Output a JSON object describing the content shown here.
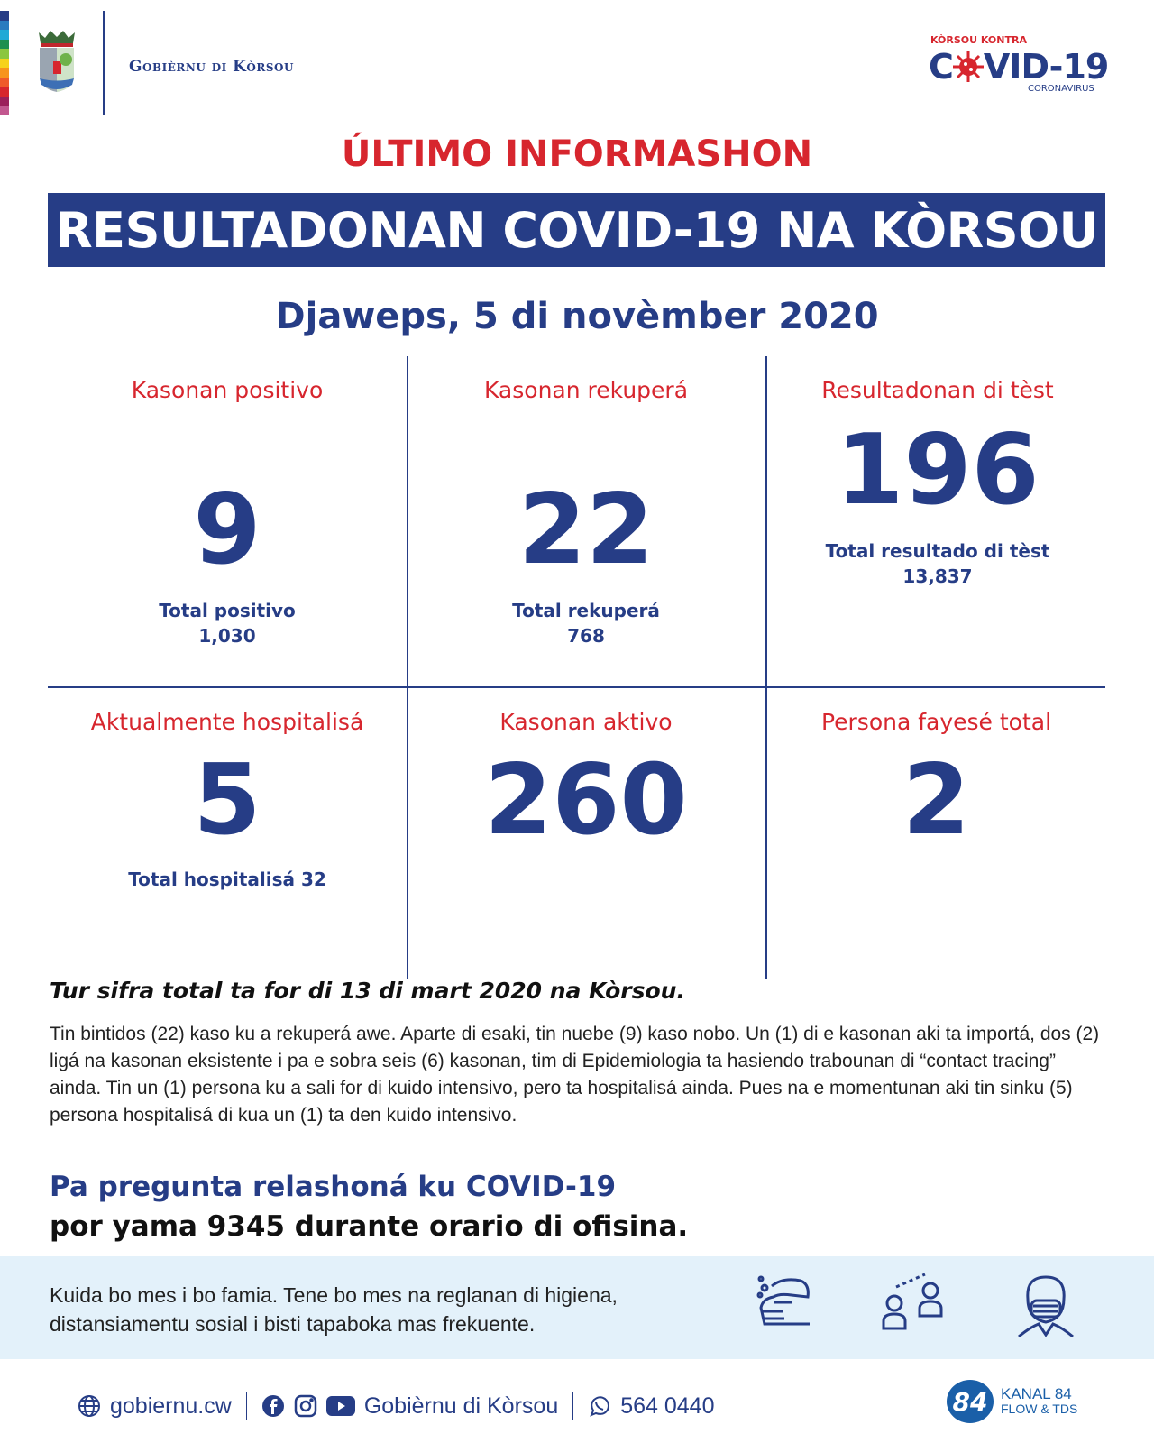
{
  "header": {
    "org_name": "Gobièrnu di Kòrsou",
    "campaign_top": "KÒRSOU KONTRA",
    "campaign_main_a": "C",
    "campaign_main_b": "VID-19",
    "campaign_sub": "CORONAVIRUS",
    "rainbow_colors": [
      "#263d86",
      "#2a7bbf",
      "#1fa9d6",
      "#1e8f4e",
      "#8cc63f",
      "#f6d21c",
      "#f7941d",
      "#ef5a2a",
      "#d7262e",
      "#9b1f5a",
      "#c2578f"
    ]
  },
  "title": "ÚLTIMO INFORMASHON",
  "banner": "RESULTADONAN COVID-19 NA KÒRSOU",
  "date": "Djaweps, 5 di novèmber 2020",
  "stats": [
    {
      "label": "Kasonan positivo",
      "value": "9",
      "total_label": "Total positivo",
      "total_value": "1,030"
    },
    {
      "label": "Kasonan rekuperá",
      "value": "22",
      "total_label": "Total rekuperá",
      "total_value": "768"
    },
    {
      "label": "Resultadonan di tèst",
      "value": "196",
      "total_label": "Total resultado di tèst",
      "total_value": "13,837"
    },
    {
      "label": "Aktualmente hospitalisá",
      "value": "5",
      "total_label": "Total hospitalisá 32"
    },
    {
      "label": "Kasonan aktivo",
      "value": "260"
    },
    {
      "label": "Persona fayesé total",
      "value": "2"
    }
  ],
  "note": "Tur sifra total ta for di 13 di mart 2020 na Kòrsou.",
  "paragraph": "Tin bintidos (22) kaso ku a rekuperá awe. Aparte di esaki, tin nuebe (9) kaso nobo. Un (1) di e kasonan aki ta importá, dos (2) ligá na kasonan eksistente i pa e sobra seis (6) kasonan, tim di Epidemiologia ta hasiendo trabounan di “contact tracing” ainda. Tin un (1) persona ku a sali for di kuido intensivo, pero ta hospitalisá ainda. Pues na e momentunan aki tin sinku (5) persona hospitalisá di kua un (1) ta den kuido intensivo.",
  "question_line1": "Pa pregunta relashoná ku COVID-19",
  "question_line2": "por yama 9345 durante orario di ofisina.",
  "advice_line1": "Kuida bo mes i bo famia. Tene bo mes na reglanan di higiena,",
  "advice_line2": "distansiamentu sosial i bisti tapaboka mas frekuente.",
  "footer": {
    "website": "gobiernu.cw",
    "social_name": "Gobièrnu di Kòrsou",
    "whatsapp": "564 0440",
    "kanal_logo": "84",
    "kanal_name": "KANAL 84",
    "kanal_sub": "FLOW & TDS"
  },
  "colors": {
    "navy": "#263d86",
    "red": "#d7262e",
    "band": "#e3f1fa"
  }
}
